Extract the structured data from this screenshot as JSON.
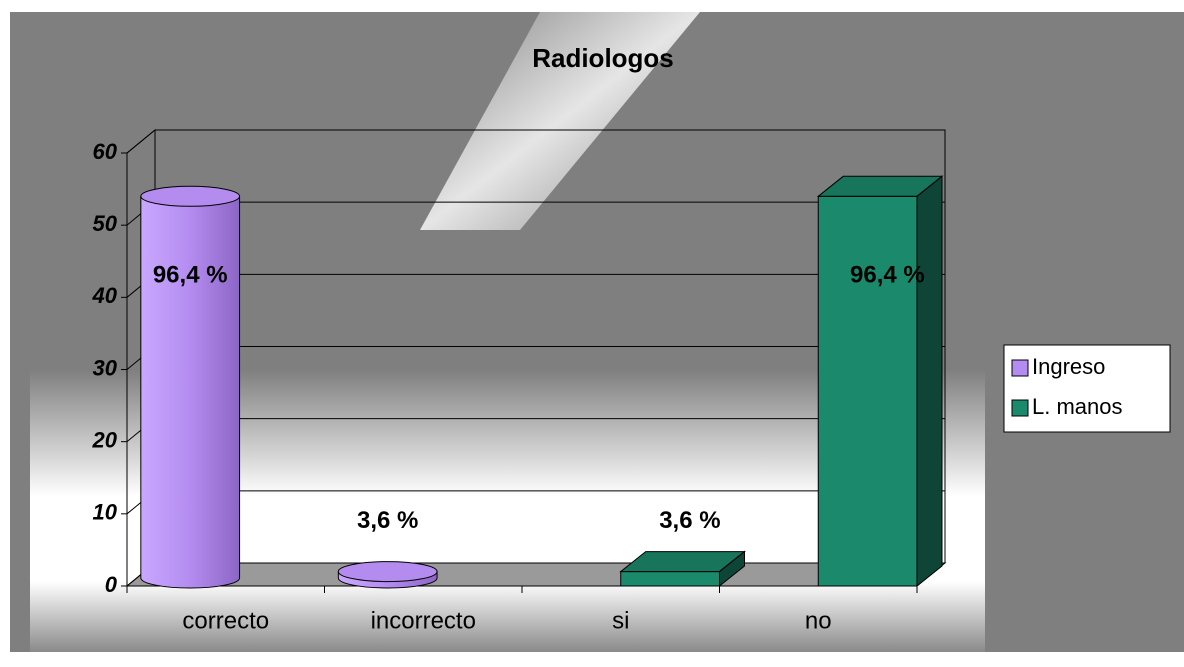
{
  "chart_data": {
    "type": "bar",
    "title": "Radiologos",
    "categories": [
      "correcto",
      "incorrecto",
      "si",
      "no"
    ],
    "series": [
      {
        "name": "Ingreso",
        "color": "#b48cf0",
        "shape": "cylinder",
        "values": [
          54,
          2,
          null,
          null
        ],
        "value_labels": [
          "96,4 %",
          "3,6 %",
          null,
          null
        ]
      },
      {
        "name": "L. manos",
        "color": "#1b8a6c",
        "shape": "box",
        "values": [
          null,
          null,
          2,
          54
        ],
        "value_labels": [
          null,
          null,
          "3,6 %",
          "96,4 %"
        ]
      }
    ],
    "ylim": [
      0,
      60
    ],
    "yticks": [
      0,
      10,
      20,
      30,
      40,
      50,
      60
    ],
    "grid": true,
    "legend": "right"
  }
}
